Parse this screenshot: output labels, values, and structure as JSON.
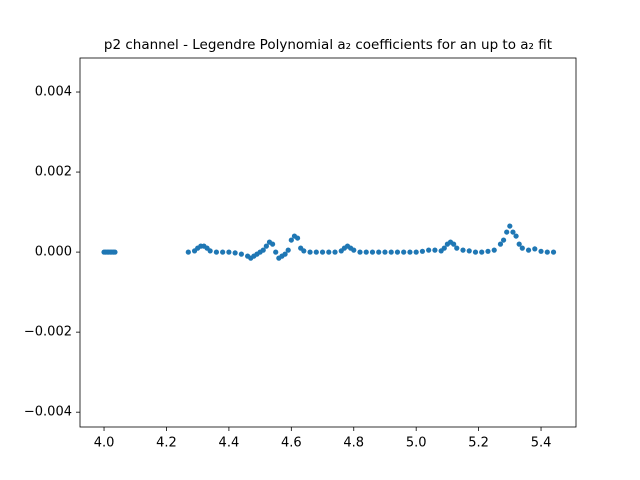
{
  "chart_data": {
    "type": "scatter",
    "title": "p2 channel - Legendre Polynomial a₂ coefficients for an up to a₂ fit",
    "series": [
      {
        "color": "#1f77b4",
        "x": [
          4.0,
          4.005,
          4.01,
          4.015,
          4.02,
          4.025,
          4.03,
          4.035,
          4.27,
          4.29,
          4.3,
          4.31,
          4.32,
          4.33,
          4.34,
          4.36,
          4.38,
          4.4,
          4.42,
          4.44,
          4.46,
          4.47,
          4.48,
          4.49,
          4.5,
          4.51,
          4.52,
          4.53,
          4.54,
          4.55,
          4.56,
          4.57,
          4.58,
          4.59,
          4.6,
          4.61,
          4.62,
          4.63,
          4.64,
          4.66,
          4.68,
          4.7,
          4.72,
          4.74,
          4.76,
          4.77,
          4.78,
          4.79,
          4.8,
          4.82,
          4.84,
          4.86,
          4.88,
          4.9,
          4.92,
          4.94,
          4.96,
          4.98,
          5.0,
          5.02,
          5.04,
          5.06,
          5.08,
          5.09,
          5.1,
          5.11,
          5.12,
          5.13,
          5.15,
          5.17,
          5.19,
          5.21,
          5.23,
          5.25,
          5.27,
          5.28,
          5.29,
          5.3,
          5.31,
          5.32,
          5.33,
          5.34,
          5.36,
          5.38,
          5.4,
          5.42,
          5.44
        ],
        "values": [
          0,
          0,
          0,
          0,
          0,
          0,
          0,
          0,
          0,
          3e-05,
          0.0001,
          0.00015,
          0.00015,
          0.0001,
          3e-05,
          0,
          0,
          0,
          -2e-05,
          -5e-05,
          -0.0001,
          -0.00015,
          -0.0001,
          -5e-05,
          0,
          5e-05,
          0.00015,
          0.00025,
          0.0002,
          0,
          -0.00015,
          -0.0001,
          -5e-05,
          5e-05,
          0.0003,
          0.0004,
          0.00035,
          0.0001,
          3e-05,
          0,
          0,
          0,
          0,
          0,
          3e-05,
          0.0001,
          0.00015,
          0.0001,
          5e-05,
          0,
          0,
          0,
          0,
          0,
          0,
          0,
          0,
          0,
          0,
          2e-05,
          5e-05,
          5e-05,
          3e-05,
          0.0001,
          0.0002,
          0.00025,
          0.0002,
          0.0001,
          5e-05,
          3e-05,
          0,
          0,
          2e-05,
          5e-05,
          0.0002,
          0.0003,
          0.0005,
          0.00065,
          0.0005,
          0.0004,
          0.0002,
          0.0001,
          5e-05,
          8e-05,
          2e-05,
          0,
          0
        ]
      }
    ],
    "xlim": [
      3.923,
      5.512
    ],
    "ylim": [
      -0.00437,
      0.00485
    ],
    "xticks": [
      {
        "value": 4.0,
        "label": "4.0"
      },
      4.2,
      4.4,
      4.6,
      4.8,
      {
        "value": 5.0,
        "label": "5.0"
      },
      5.2,
      5.4
    ],
    "yticks": [
      {
        "value": -0.004,
        "label": "−0.004"
      },
      {
        "value": -0.002,
        "label": "−0.002"
      },
      {
        "value": 0,
        "label": "0.000"
      },
      {
        "value": 0.002,
        "label": "0.002"
      },
      {
        "value": 0.004,
        "label": "0.004"
      }
    ]
  }
}
